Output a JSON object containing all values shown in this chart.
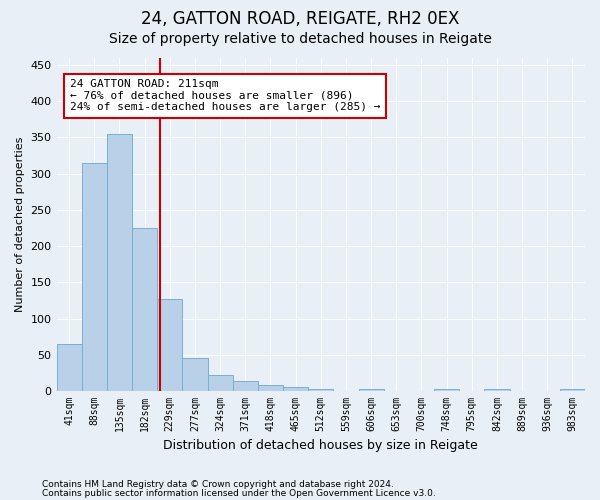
{
  "title1": "24, GATTON ROAD, REIGATE, RH2 0EX",
  "title2": "Size of property relative to detached houses in Reigate",
  "xlabel": "Distribution of detached houses by size in Reigate",
  "ylabel": "Number of detached properties",
  "categories": [
    "41sqm",
    "88sqm",
    "135sqm",
    "182sqm",
    "229sqm",
    "277sqm",
    "324sqm",
    "371sqm",
    "418sqm",
    "465sqm",
    "512sqm",
    "559sqm",
    "606sqm",
    "653sqm",
    "700sqm",
    "748sqm",
    "795sqm",
    "842sqm",
    "889sqm",
    "936sqm",
    "983sqm"
  ],
  "values": [
    65,
    315,
    355,
    225,
    127,
    45,
    22,
    14,
    9,
    5,
    3,
    0,
    3,
    0,
    0,
    3,
    0,
    3,
    0,
    0,
    3
  ],
  "bar_color": "#b8d0e8",
  "bar_edge_color": "#7aafd4",
  "bar_linewidth": 0.7,
  "vline_color": "#cc0000",
  "vline_linewidth": 1.5,
  "annotation_text": "24 GATTON ROAD: 211sqm\n← 76% of detached houses are smaller (896)\n24% of semi-detached houses are larger (285) →",
  "annotation_box_color": "#ffffff",
  "annotation_box_edgecolor": "#cc0000",
  "ylim": [
    0,
    460
  ],
  "yticks": [
    0,
    50,
    100,
    150,
    200,
    250,
    300,
    350,
    400,
    450
  ],
  "footer1": "Contains HM Land Registry data © Crown copyright and database right 2024.",
  "footer2": "Contains public sector information licensed under the Open Government Licence v3.0.",
  "bg_color": "#e8eff7",
  "plot_bg_color": "#e8eff7",
  "grid_color": "#ffffff",
  "title1_fontsize": 12,
  "title2_fontsize": 10,
  "footer_fontsize": 6.5,
  "xlabel_fontsize": 9,
  "ylabel_fontsize": 8,
  "ytick_fontsize": 8,
  "xtick_fontsize": 7,
  "annot_fontsize": 8
}
